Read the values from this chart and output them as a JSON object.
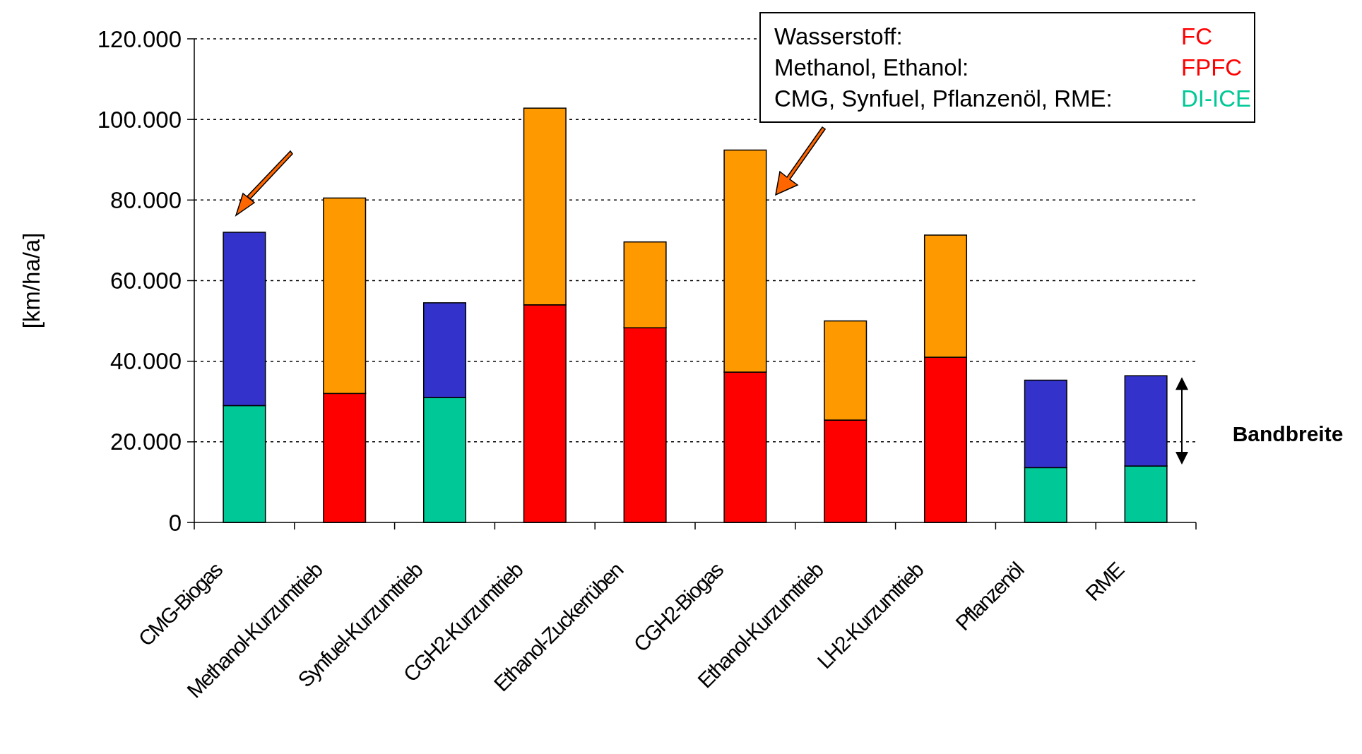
{
  "chart_data": {
    "type": "bar",
    "stacked": true,
    "ylabel": "[km/ha/a]",
    "categories": [
      "CMG-Biogas",
      "Methanol-Kurzumtrieb",
      "Synfuel-Kurzumtrieb",
      "CGH2-Kurzumtrieb",
      "Ethanol-Zuckerrüben",
      "CGH2-Biogas",
      "Ethanol-Kurzumtrieb",
      "LH2-Kurzumtrieb",
      "Pflanzenöl",
      "RME"
    ],
    "series": [
      {
        "colors": [
          "#00c896",
          "#ff0000",
          "#00c896",
          "#ff0000",
          "#ff0000",
          "#ff0000",
          "#ff0000",
          "#ff0000",
          "#00c896",
          "#00c896"
        ],
        "values": [
          29000,
          32000,
          31000,
          54000,
          48300,
          37300,
          25400,
          41000,
          13600,
          14000
        ]
      },
      {
        "colors": [
          "#3333cc",
          "#ff9900",
          "#3333cc",
          "#ff9900",
          "#ff9900",
          "#ff9900",
          "#ff9900",
          "#ff9900",
          "#3333cc",
          "#3333cc"
        ],
        "values": [
          43000,
          48500,
          23500,
          48800,
          21300,
          55100,
          24600,
          30300,
          21700,
          22400
        ]
      }
    ],
    "ylim": [
      0,
      120000
    ],
    "yticks": [
      0,
      {
        "value": 20000,
        "label": "20.000"
      },
      {
        "value": 40000,
        "label": "40.000"
      },
      {
        "value": 60000,
        "label": "60.000"
      },
      {
        "value": 80000,
        "label": "80.000"
      },
      {
        "value": 100000,
        "label": "100.000"
      },
      {
        "value": 120000,
        "label": "120.000"
      }
    ],
    "grid": "y",
    "annotations": [
      "Wasserstoff:",
      "FC",
      "Methanol, Ethanol:",
      "FPFC",
      "CMG, Synfuel, Pflanzenöl, RME:",
      "DI-ICE",
      "Bandbreite"
    ]
  }
}
